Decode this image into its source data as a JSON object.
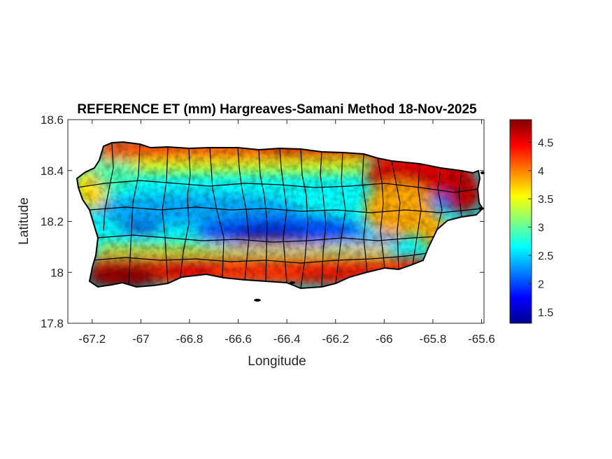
{
  "chart_data": {
    "type": "heatmap",
    "title": "REFERENCE ET (mm) Hargreaves-Samani Method  18-Nov-2025",
    "xlabel": "Longitude",
    "ylabel": "Latitude",
    "xlim": [
      -67.3,
      -65.59
    ],
    "ylim": [
      17.8,
      18.6
    ],
    "xticks": [
      -67.2,
      -67,
      -66.8,
      -66.6,
      -66.4,
      -66.2,
      -66,
      -65.8,
      -65.6
    ],
    "xtick_labels": [
      "-67.2",
      "-67",
      "-66.8",
      "-66.6",
      "-66.4",
      "-66.2",
      "-66",
      "-65.8",
      "-65.6"
    ],
    "yticks": [
      17.8,
      18,
      18.2,
      18.4,
      18.6
    ],
    "ytick_labels": [
      "17.8",
      "18",
      "18.2",
      "18.4",
      "18.6"
    ],
    "colorbar": {
      "colormap": "jet",
      "range": [
        1.3,
        4.9
      ],
      "ticks": [
        1.5,
        2,
        2.5,
        3,
        3.5,
        4,
        4.5
      ],
      "tick_labels": [
        "1.5",
        "2",
        "2.5",
        "3",
        "3.5",
        "4",
        "4.5"
      ]
    },
    "grid": false
  }
}
